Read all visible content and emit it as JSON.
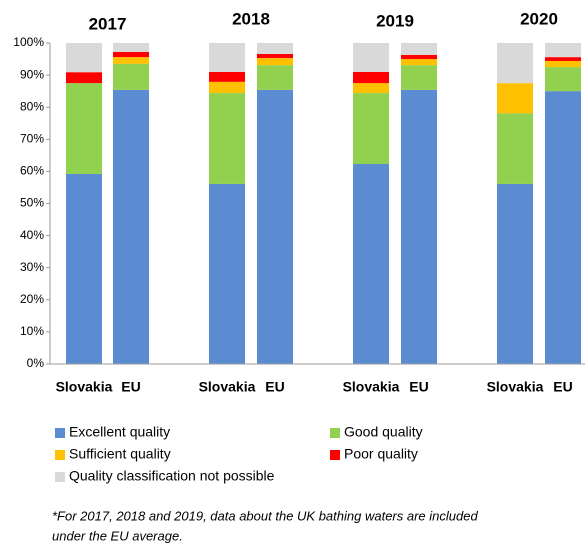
{
  "chart_data": {
    "type": "stacked_bar",
    "groups": [
      "2017",
      "2018",
      "2019",
      "2020"
    ],
    "categories": [
      "Slovakia",
      "EU",
      "Slovakia",
      "EU",
      "Slovakia",
      "EU",
      "Slovakia",
      "EU"
    ],
    "series": [
      {
        "name": "Excellent quality",
        "color": "#5b8bd0",
        "values": [
          59.2,
          85.4,
          56.1,
          85.4,
          62.3,
          85.4,
          56.1,
          85.0
        ]
      },
      {
        "name": "Good quality",
        "color": "#92d050",
        "values": [
          28.3,
          8.1,
          28.3,
          7.7,
          22.1,
          7.7,
          22.0,
          7.5
        ]
      },
      {
        "name": "Sufficient quality",
        "color": "#ffc000",
        "values": [
          0,
          2.1,
          3.5,
          2.2,
          3.1,
          1.9,
          9.4,
          1.9
        ]
      },
      {
        "name": "Poor quality",
        "color": "#ff0000",
        "values": [
          3.4,
          1.6,
          3.1,
          1.3,
          3.5,
          1.3,
          0,
          1.2
        ]
      },
      {
        "name": "Quality classification not possible",
        "color": "#d9d9d9",
        "values": [
          9.1,
          2.8,
          9.0,
          3.4,
          9.0,
          3.7,
          12.5,
          4.4
        ]
      }
    ],
    "ylim": [
      0,
      100
    ],
    "yticks": [
      {
        "value": 0,
        "label": "0%"
      },
      {
        "value": 10,
        "label": "10%"
      },
      {
        "value": 20,
        "label": "20%"
      },
      {
        "value": 30,
        "label": "30%"
      },
      {
        "value": 40,
        "label": "40%"
      },
      {
        "value": 50,
        "label": "50%"
      },
      {
        "value": 60,
        "label": "60%"
      },
      {
        "value": 70,
        "label": "70%"
      },
      {
        "value": 80,
        "label": "80%"
      },
      {
        "value": 90,
        "label": "90%"
      },
      {
        "value": 100,
        "label": "100%"
      }
    ],
    "legend": "bottom",
    "footnote": [
      "*For 2017, 2018 and 2019,  data about the UK bathing waters are included",
      "under the EU average."
    ]
  }
}
